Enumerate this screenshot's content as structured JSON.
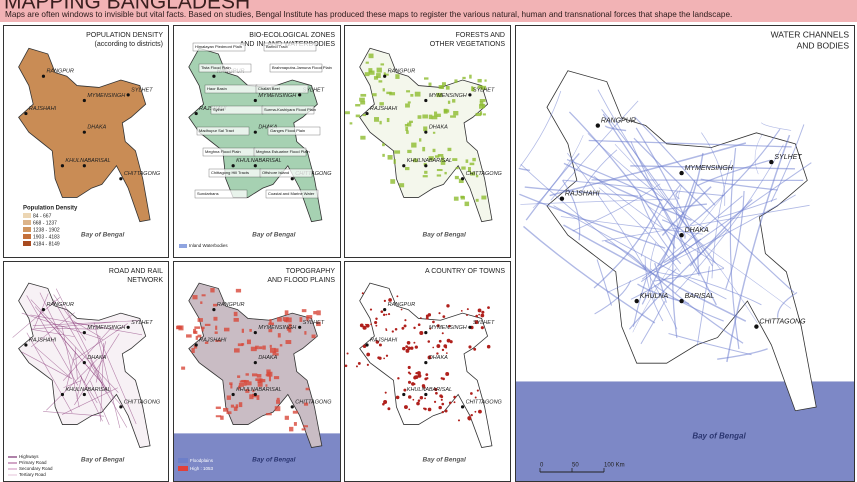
{
  "header": {
    "title": "MAPPING BANGLADESH",
    "subtitle": "Maps are often windows to invisible but vital facts. Based on studies, Bengal Institute has produced these maps to register the various natural, human and transnational forces that shape the landscape."
  },
  "panels": [
    {
      "title": [
        "POPULATION DENSITY",
        "(according to districts)"
      ],
      "cities": [
        "RANGPUR",
        "SYLHET",
        "RAJSHAHI",
        "MYMENSINGH",
        "DHAKA",
        "KHULNA",
        "BARISAL",
        "CHITTAGONG"
      ],
      "sea_label": "Bay of Bengal",
      "legend_title": "Population Density",
      "legend": [
        "84 - 667",
        "668 - 1237",
        "1238 - 1902",
        "1903 - 4183",
        "4184 - 8149"
      ]
    },
    {
      "title": [
        "BIO-ECOLOGICAL ZONES",
        "AND INLAND WATERBODIES"
      ],
      "cities": [
        "RANGPUR",
        "SYLHET",
        "RAJSHAHI",
        "MYMENSINGH",
        "DHAKA",
        "KHULNA",
        "BARISAL",
        "CHITTAGONG"
      ],
      "sea_label": "Bay of Bengal",
      "legend": [
        "Inland Waterbodies"
      ],
      "labels": [
        "Himalayan Piedmont Plain",
        "Barind Tract",
        "Tista Flood Plain",
        "Brahmaputra-Jamuna Flood Plain",
        "Haor Basin",
        "Chalan Beel",
        "Sylhet",
        "Surma-Kushiyara Flood Plain",
        "Madhupur Sal Tract",
        "Ganges Flood Plain",
        "Meghna Flood Plain",
        "Meghna Estuarine Flood Plain",
        "Chittagong Hill Tracts",
        "Offshore Island",
        "Sundarbans",
        "Coastal and Marine Water"
      ]
    },
    {
      "title": [
        "FORESTS AND",
        "OTHER VEGETATIONS"
      ],
      "cities": [
        "RANGPUR",
        "SYLHET",
        "RAJSHAHI",
        "MYMENSINGH",
        "DHAKA",
        "KHULNA",
        "BARISAL",
        "CHITTAGONG"
      ],
      "sea_label": "Bay of Bengal"
    },
    {
      "title": [
        "ROAD AND RAIL",
        "NETWORK"
      ],
      "cities": [
        "RANGPUR",
        "SYLHET",
        "RAJSHAHI",
        "MYMENSINGH",
        "DHAKA",
        "KHULNA",
        "BARISAL",
        "CHITTAGONG"
      ],
      "sea_label": "Bay of Bengal",
      "legend": [
        "Highways",
        "Primary Road",
        "Secondary Road",
        "Tertiary Road"
      ]
    },
    {
      "title": [
        "TOPOGRAPHY",
        "AND FLOOD PLAINS"
      ],
      "cities": [
        "RANGPUR",
        "SYLHET",
        "RAJSHAHI",
        "MYMENSINGH",
        "DHAKA",
        "KHULNA",
        "BARISAL",
        "CHITTAGONG"
      ],
      "sea_label": "Bay of Bengal",
      "legend": [
        "Floodplains",
        "High : 1053"
      ]
    },
    {
      "title": [
        "A COUNTRY OF TOWNS"
      ],
      "cities": [
        "RANGPUR",
        "SYLHET",
        "RAJSHAHI",
        "MYMENSINGH",
        "DHAKA",
        "KHULNA",
        "BARISAL",
        "CHITTAGONG"
      ],
      "sea_label": "Bay of Bengal"
    }
  ],
  "main": {
    "title": [
      "WATER CHANNELS",
      "AND BODIES"
    ],
    "cities": [
      "RANGPUR",
      "SYLHET",
      "RAJSHAHI",
      "MYMENSINGH",
      "DHAKA",
      "KHULNA",
      "BARISAL",
      "CHITTAGONG"
    ],
    "sea_label": "Bay of Bengal",
    "scale": [
      "0",
      "50",
      "100 Km"
    ]
  }
}
